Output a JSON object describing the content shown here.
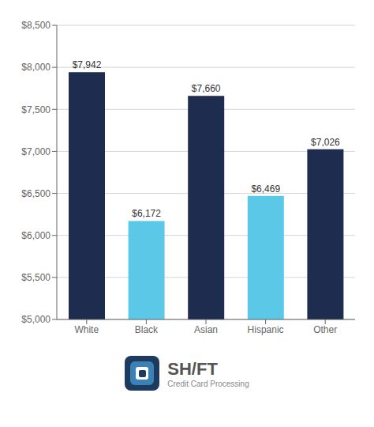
{
  "chart_data": {
    "type": "bar",
    "categories": [
      "White",
      "Black",
      "Asian",
      "Hispanic",
      "Other"
    ],
    "values": [
      7942,
      6172,
      7660,
      6469,
      7026
    ],
    "value_labels": [
      "$7,942",
      "$6,172",
      "$7,660",
      "$6,469",
      "$7,026"
    ],
    "colors": [
      "#1e2d4f",
      "#5bc8e8",
      "#1e2d4f",
      "#5bc8e8",
      "#1e2d4f"
    ],
    "ylim": [
      5000,
      8500
    ],
    "yticks": [
      {
        "value": 5000,
        "label": "$5,000"
      },
      {
        "value": 5500,
        "label": "$5,500"
      },
      {
        "value": 6000,
        "label": "$6,000"
      },
      {
        "value": 6500,
        "label": "$6,500"
      },
      {
        "value": 7000,
        "label": "$7,000"
      },
      {
        "value": 7500,
        "label": "$7,500"
      },
      {
        "value": 8000,
        "label": "$8,000"
      },
      {
        "value": 8500,
        "label": "$8,500"
      }
    ],
    "grid": true,
    "data_labels": true,
    "annotations": [
      "SH/FT",
      "Credit Card Processing"
    ]
  }
}
